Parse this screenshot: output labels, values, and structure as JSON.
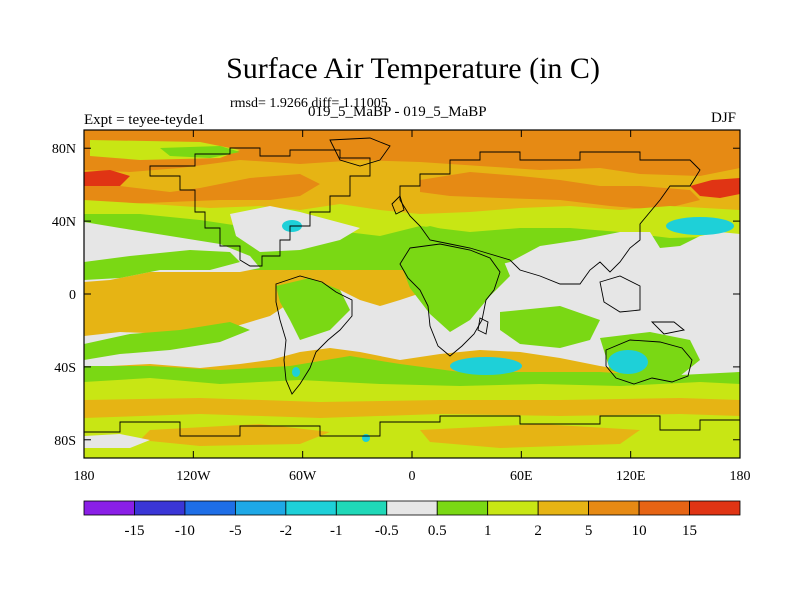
{
  "header": {
    "title": "Surface Air Temperature (in C)",
    "stats": "rmsd= 1.9266 diff= 1.11005",
    "experiment": "Expt = teyee-teyde1",
    "subtitle": "019_5_MaBP - 019_5_MaBP",
    "season": "DJF"
  },
  "chart_data": {
    "type": "heatmap",
    "projection": "cylindrical-equidistant",
    "xlim": [
      -180,
      180
    ],
    "ylim": [
      -90,
      90
    ],
    "x_ticks": [
      {
        "value": -180,
        "label": "180"
      },
      {
        "value": -120,
        "label": "120W"
      },
      {
        "value": -60,
        "label": "60W"
      },
      {
        "value": 0,
        "label": "0"
      },
      {
        "value": 60,
        "label": "60E"
      },
      {
        "value": 120,
        "label": "120E"
      },
      {
        "value": 180,
        "label": "180"
      }
    ],
    "y_ticks": [
      {
        "value": 80,
        "label": "80N"
      },
      {
        "value": 40,
        "label": "40N"
      },
      {
        "value": 0,
        "label": "0"
      },
      {
        "value": -40,
        "label": "40S"
      },
      {
        "value": -80,
        "label": "80S"
      }
    ],
    "colorbar": {
      "levels": [
        "-15",
        "-10",
        "-5",
        "-2",
        "-1",
        "-0.5",
        "0.5",
        "1",
        "2",
        "5",
        "10",
        "15"
      ],
      "colors": [
        "#8a1fe6",
        "#3a36d6",
        "#1e6ee6",
        "#1ea8e6",
        "#1ed0d8",
        "#20d8b8",
        "#e6e6e6",
        "#7ad814",
        "#c8e614",
        "#e6b414",
        "#e68a14",
        "#e66414",
        "#e03414"
      ]
    },
    "colors": {
      "near_zero": "#e6e6e6",
      "green": "#7ad814",
      "yellow_green": "#c8e614",
      "yellow_orange": "#e6b414",
      "orange": "#e68a14",
      "dark_orange": "#e66414",
      "red": "#e03414",
      "cyan": "#1ed0d8"
    }
  }
}
